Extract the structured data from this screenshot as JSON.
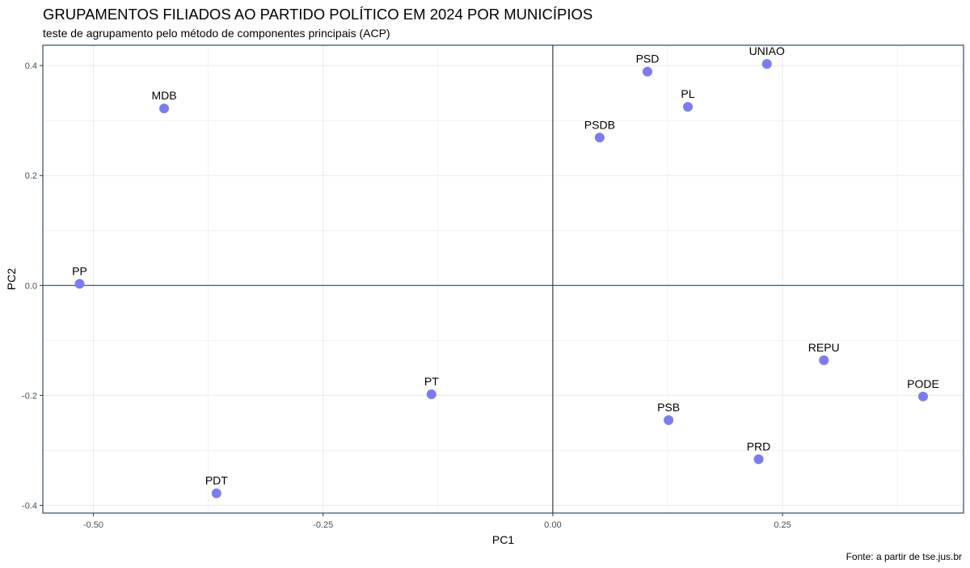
{
  "title": "GRUPAMENTOS FILIADOS AO PARTIDO POLÍTICO EM 2024 POR MUNICÍPIOS",
  "subtitle": "teste de agrupamento pelo método de componentes principais (ACP)",
  "caption": "Fonte: a partir de tse.jus.br",
  "colors": {
    "point": "#7b7bf2",
    "grid": "#ebebeb",
    "border": "#34495e",
    "refline": "#1a1a1a"
  },
  "chart_data": {
    "type": "scatter",
    "xlabel": "PC1",
    "ylabel": "PC2",
    "xlim": [
      -0.555,
      0.447
    ],
    "ylim": [
      -0.414,
      0.437
    ],
    "grid": true,
    "x_ticks": [
      -0.5,
      -0.25,
      0.0,
      0.25
    ],
    "x_tick_labels": [
      "-0.50",
      "-0.25",
      "0.00",
      "0.25"
    ],
    "y_ticks": [
      -0.4,
      -0.2,
      0.0,
      0.2,
      0.4
    ],
    "y_tick_labels": [
      "-0.4",
      "-0.2",
      "0.0",
      "0.2",
      "0.4"
    ],
    "reference_lines": {
      "x": 0,
      "y": 0
    },
    "points": [
      {
        "label": "MDB",
        "x": -0.423,
        "y": 0.322
      },
      {
        "label": "PP",
        "x": -0.515,
        "y": 0.003
      },
      {
        "label": "PDT",
        "x": -0.366,
        "y": -0.378
      },
      {
        "label": "PT",
        "x": -0.132,
        "y": -0.198
      },
      {
        "label": "PSDB",
        "x": 0.051,
        "y": 0.269
      },
      {
        "label": "PSD",
        "x": 0.103,
        "y": 0.389
      },
      {
        "label": "PL",
        "x": 0.147,
        "y": 0.325
      },
      {
        "label": "UNIAO",
        "x": 0.233,
        "y": 0.403
      },
      {
        "label": "PSB",
        "x": 0.126,
        "y": -0.245
      },
      {
        "label": "PRD",
        "x": 0.224,
        "y": -0.316
      },
      {
        "label": "REPU",
        "x": 0.295,
        "y": -0.136
      },
      {
        "label": "PODE",
        "x": 0.403,
        "y": -0.202
      }
    ]
  }
}
